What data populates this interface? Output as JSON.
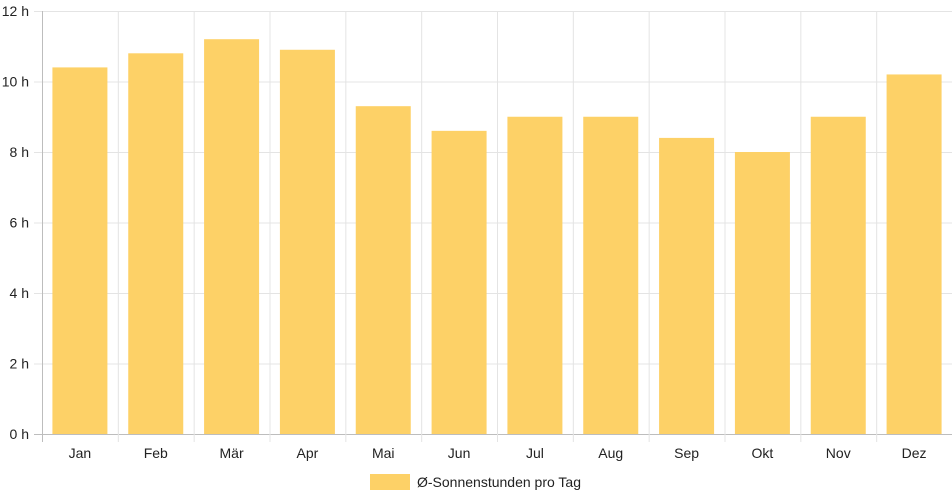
{
  "chart_data": {
    "type": "bar",
    "categories": [
      "Jan",
      "Feb",
      "Mär",
      "Apr",
      "Mai",
      "Jun",
      "Jul",
      "Aug",
      "Sep",
      "Okt",
      "Nov",
      "Dez"
    ],
    "series": [
      {
        "name": "Ø-Sonnenstunden pro Tag",
        "values": [
          10.4,
          10.8,
          11.2,
          10.9,
          9.3,
          8.6,
          9.0,
          9.0,
          8.4,
          8.0,
          9.0,
          10.2
        ]
      }
    ],
    "y_ticks": [
      "0 h",
      "2 h",
      "4 h",
      "6 h",
      "8 h",
      "10 h",
      "12 h"
    ],
    "ylim": [
      0,
      12
    ],
    "grid": true,
    "legend_position": "bottom",
    "colors": {
      "bar": "#FDD167",
      "grid": "#e4e4e4",
      "axis": "#bdbdbd"
    }
  }
}
